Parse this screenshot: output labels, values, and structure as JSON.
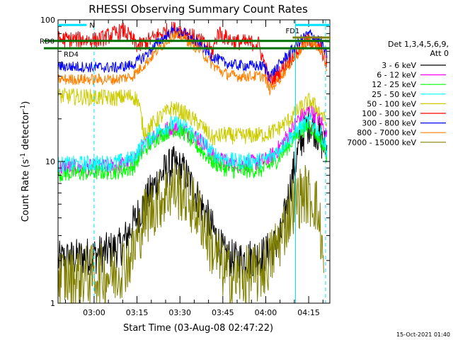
{
  "chart_data": {
    "type": "line",
    "title": "RHESSI Observing Summary Count Rates",
    "xlabel": "Start Time (03-Aug-08 02:47:22)",
    "ylabel_main": "Count Rate (s",
    "ylabel_sup": "-1",
    "ylabel_mid": " detector",
    "ylabel_end": ")",
    "y_scale": "log",
    "ylim": [
      1,
      100
    ],
    "y_ticks": [
      {
        "value": 1,
        "label": "1"
      },
      {
        "value": 10,
        "label": "10"
      },
      {
        "value": 100,
        "label": "100"
      }
    ],
    "xlim_minutes": [
      0,
      95
    ],
    "x_ticks": [
      {
        "minute": 12.6,
        "label": "03:00"
      },
      {
        "minute": 27.6,
        "label": "03:15"
      },
      {
        "minute": 42.6,
        "label": "03:30"
      },
      {
        "minute": 57.6,
        "label": "03:45"
      },
      {
        "minute": 72.6,
        "label": "04:00"
      },
      {
        "minute": 87.6,
        "label": "04:15"
      }
    ],
    "legend_placement": "right",
    "legend_header_line1": "Det 1,3,4,5,6,9,",
    "legend_header_line2": "Att 0",
    "series": [
      {
        "name": "3 - 6 keV",
        "color": "#000000",
        "noise": 0.14,
        "points": [
          [
            0,
            2.0
          ],
          [
            14,
            2.2
          ],
          [
            22,
            2.5
          ],
          [
            30,
            5.0
          ],
          [
            36,
            8.0
          ],
          [
            40,
            9.5
          ],
          [
            44,
            8.5
          ],
          [
            50,
            5.0
          ],
          [
            55,
            3.0
          ],
          [
            58,
            2.2
          ],
          [
            62,
            2.0
          ],
          [
            72,
            2.2
          ],
          [
            76,
            2.6
          ],
          [
            78,
            3.0
          ],
          [
            80,
            5.0
          ],
          [
            82,
            8.0
          ],
          [
            84,
            12.0
          ],
          [
            86,
            16.0
          ],
          [
            88,
            19.0
          ],
          [
            90,
            17.0
          ],
          [
            92,
            14.0
          ],
          [
            94,
            12.0
          ]
        ]
      },
      {
        "name": "6 - 12 keV",
        "color": "#ff00ff",
        "noise": 0.06,
        "points": [
          [
            0,
            9.0
          ],
          [
            20,
            9.2
          ],
          [
            26,
            10.0
          ],
          [
            30,
            13.0
          ],
          [
            35,
            16.0
          ],
          [
            40,
            17.5
          ],
          [
            44,
            17.0
          ],
          [
            50,
            14.0
          ],
          [
            54,
            11.0
          ],
          [
            58,
            10.0
          ],
          [
            62,
            9.5
          ],
          [
            72,
            10.0
          ],
          [
            76,
            11.5
          ],
          [
            80,
            15.0
          ],
          [
            84,
            20.0
          ],
          [
            88,
            23.0
          ],
          [
            92,
            19.0
          ],
          [
            94,
            15.0
          ]
        ]
      },
      {
        "name": "12 - 25 keV",
        "color": "#00ff00",
        "noise": 0.06,
        "points": [
          [
            0,
            8.2
          ],
          [
            20,
            8.5
          ],
          [
            26,
            9.0
          ],
          [
            30,
            12.0
          ],
          [
            35,
            15.0
          ],
          [
            40,
            17.0
          ],
          [
            44,
            16.0
          ],
          [
            50,
            12.0
          ],
          [
            54,
            10.0
          ],
          [
            58,
            9.0
          ],
          [
            62,
            8.6
          ],
          [
            72,
            8.8
          ],
          [
            76,
            10.0
          ],
          [
            80,
            12.5
          ],
          [
            84,
            16.0
          ],
          [
            88,
            18.0
          ],
          [
            92,
            14.0
          ],
          [
            94,
            11.0
          ]
        ]
      },
      {
        "name": "25 - 50 keV",
        "color": "#00ffff",
        "noise": 0.06,
        "points": [
          [
            0,
            9.5
          ],
          [
            20,
            9.8
          ],
          [
            26,
            10.5
          ],
          [
            30,
            13.5
          ],
          [
            35,
            16.5
          ],
          [
            40,
            18.5
          ],
          [
            44,
            18.0
          ],
          [
            50,
            14.0
          ],
          [
            54,
            11.5
          ],
          [
            58,
            10.5
          ],
          [
            62,
            10.0
          ],
          [
            72,
            10.2
          ],
          [
            76,
            11.5
          ],
          [
            80,
            14.0
          ],
          [
            84,
            17.0
          ],
          [
            88,
            19.5
          ],
          [
            92,
            15.5
          ],
          [
            94,
            12.0
          ]
        ]
      },
      {
        "name": "50 - 100 keV",
        "color": "#cccc00",
        "noise": 0.06,
        "points": [
          [
            0,
            29.0
          ],
          [
            20,
            28.0
          ],
          [
            26,
            29.0
          ],
          [
            28,
            27.0
          ],
          [
            30,
            16.0
          ],
          [
            35,
            20.0
          ],
          [
            40,
            24.0
          ],
          [
            44,
            22.0
          ],
          [
            50,
            18.0
          ],
          [
            54,
            14.5
          ],
          [
            58,
            15.5
          ],
          [
            62,
            15.0
          ],
          [
            72,
            15.5
          ],
          [
            76,
            16.5
          ],
          [
            80,
            19.0
          ],
          [
            84,
            23.0
          ],
          [
            88,
            27.0
          ],
          [
            92,
            22.0
          ],
          [
            94,
            18.0
          ]
        ]
      },
      {
        "name": "100 - 300 keV",
        "color": "#ff0000",
        "noise": 0.06,
        "points": [
          [
            0,
            73.0
          ],
          [
            14,
            72.0
          ],
          [
            20,
            80.0
          ],
          [
            23,
            84.0
          ],
          [
            26,
            72.0
          ],
          [
            28,
            65.0
          ],
          [
            32,
            72.0
          ],
          [
            36,
            80.0
          ],
          [
            40,
            86.0
          ],
          [
            44,
            83.0
          ],
          [
            50,
            70.0
          ],
          [
            54,
            60.0
          ],
          [
            56,
            82.0
          ],
          [
            58,
            76.0
          ],
          [
            62,
            70.0
          ],
          [
            70,
            68.0
          ],
          [
            72,
            50.0
          ],
          [
            74,
            36.0
          ],
          [
            78,
            44.0
          ],
          [
            82,
            56.0
          ],
          [
            86,
            68.0
          ],
          [
            88,
            73.0
          ],
          [
            92,
            62.0
          ],
          [
            94,
            50.0
          ]
        ]
      },
      {
        "name": "300 - 800 keV",
        "color": "#0000ff",
        "noise": 0.04,
        "points": [
          [
            0,
            47.0
          ],
          [
            20,
            46.0
          ],
          [
            26,
            48.0
          ],
          [
            30,
            55.0
          ],
          [
            36,
            72.0
          ],
          [
            40,
            83.0
          ],
          [
            44,
            80.0
          ],
          [
            50,
            65.0
          ],
          [
            54,
            55.0
          ],
          [
            58,
            50.0
          ],
          [
            62,
            48.0
          ],
          [
            72,
            47.0
          ],
          [
            74,
            40.0
          ],
          [
            78,
            50.0
          ],
          [
            82,
            62.0
          ],
          [
            86,
            76.0
          ],
          [
            88,
            80.0
          ],
          [
            92,
            70.0
          ],
          [
            94,
            55.0
          ]
        ]
      },
      {
        "name": "800 - 7000 keV",
        "color": "#ff8000",
        "noise": 0.04,
        "points": [
          [
            0,
            38.0
          ],
          [
            20,
            38.0
          ],
          [
            26,
            40.0
          ],
          [
            30,
            48.0
          ],
          [
            36,
            65.0
          ],
          [
            40,
            78.0
          ],
          [
            44,
            75.0
          ],
          [
            50,
            60.0
          ],
          [
            54,
            48.0
          ],
          [
            58,
            42.0
          ],
          [
            62,
            40.0
          ],
          [
            72,
            40.0
          ],
          [
            74,
            32.0
          ],
          [
            78,
            40.0
          ],
          [
            82,
            52.0
          ],
          [
            86,
            66.0
          ],
          [
            88,
            72.0
          ],
          [
            92,
            60.0
          ],
          [
            94,
            45.0
          ]
        ]
      },
      {
        "name": "7000 - 15000 keV",
        "color": "#808000",
        "noise": 0.22,
        "points": [
          [
            0,
            1.5
          ],
          [
            14,
            1.6
          ],
          [
            20,
            1.6
          ],
          [
            26,
            2.2
          ],
          [
            30,
            4.0
          ],
          [
            36,
            5.5
          ],
          [
            40,
            6.5
          ],
          [
            44,
            6.0
          ],
          [
            50,
            4.0
          ],
          [
            54,
            2.4
          ],
          [
            58,
            1.7
          ],
          [
            62,
            1.5
          ],
          [
            70,
            1.6
          ],
          [
            74,
            2.0
          ],
          [
            78,
            3.0
          ],
          [
            82,
            5.0
          ],
          [
            86,
            6.0
          ],
          [
            88,
            5.5
          ],
          [
            90,
            5.2
          ],
          [
            92,
            3.0
          ],
          [
            93,
            1.5
          ]
        ]
      }
    ],
    "annotations": [
      {
        "label": "N",
        "color": "#00e0ff",
        "kind": "segment",
        "x0": 0,
        "x1": 10,
        "y": 92
      },
      {
        "label": "FD1",
        "color": "#808000",
        "kind": "segment",
        "x0": 82,
        "x1": 95,
        "y": 75
      },
      {
        "label": "RD0",
        "color": "#007000",
        "kind": "line",
        "y": 71
      },
      {
        "label": "RD4",
        "color": "#007000",
        "kind": "line",
        "y": 63
      },
      {
        "label": "",
        "color": "#00e0ff",
        "kind": "segment",
        "x0": 83,
        "x1": 95,
        "y": 92
      }
    ],
    "verticals": [
      {
        "minute": 12.6,
        "color": "#00e0ff",
        "dash": true
      },
      {
        "minute": 83.0,
        "color": "#00e0ff",
        "dash": false
      },
      {
        "minute": 93.5,
        "color": "#00e0ff",
        "dash": true
      }
    ]
  },
  "footer_timestamp": "15-Oct-2021 01:40"
}
